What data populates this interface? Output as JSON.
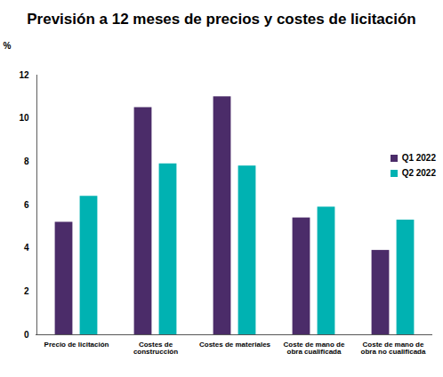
{
  "chart_data": {
    "type": "bar",
    "title": "Previsión a 12 meses de precios y costes de licitación",
    "y_label": "%",
    "categories": [
      "Precio de licitación",
      "Costes de construcción",
      "Costes de materiales",
      "Coste de mano de obra cualificada",
      "Coste de mano de obra no cualificada"
    ],
    "series": [
      {
        "name": "Q1 2022",
        "color": "#4b2c69",
        "values": [
          5.2,
          10.5,
          11.0,
          5.4,
          3.9
        ]
      },
      {
        "name": "Q2 2022",
        "color": "#00b2b2",
        "values": [
          6.4,
          7.9,
          7.8,
          5.9,
          5.3
        ]
      }
    ],
    "ylim": [
      0,
      12
    ],
    "yticks": [
      0,
      2,
      4,
      6,
      8,
      10,
      12
    ],
    "grid": false,
    "legend": "right"
  }
}
